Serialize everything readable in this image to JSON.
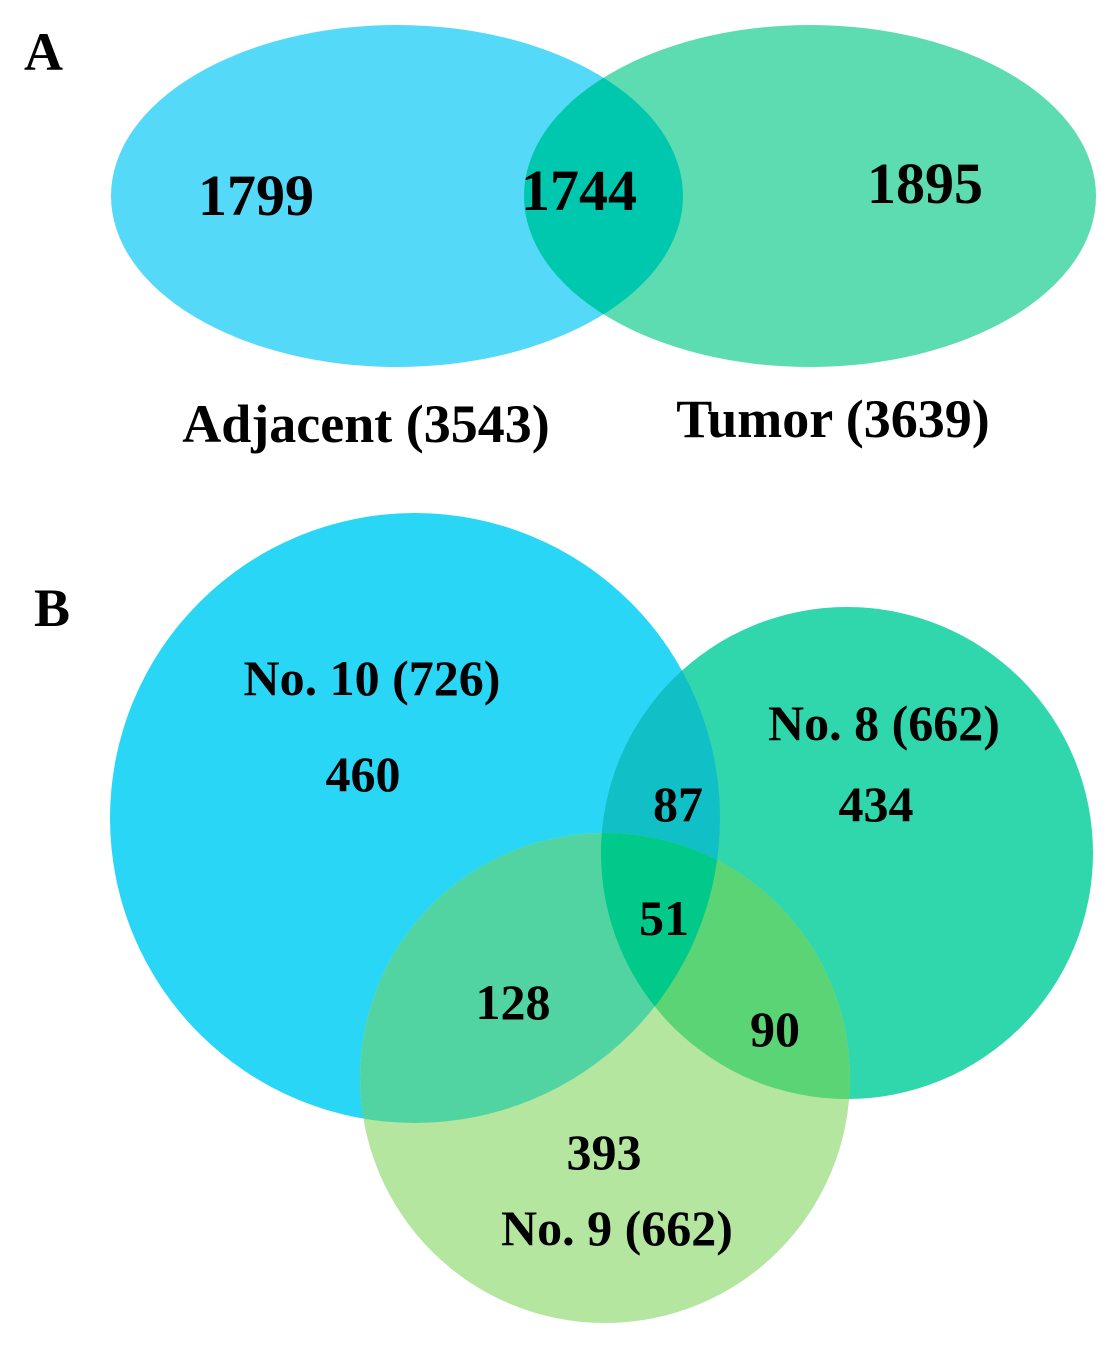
{
  "colors": {
    "adjacent": "#55d9f8",
    "tumor": "#5cdcb0",
    "overlap_a": "#00c8ae",
    "no10": "#2ad6f6",
    "no8": "#30d6ac",
    "no9": "#b5e6a0",
    "no10_no8": "#11bfc7",
    "no10_no9": "#52d4a2",
    "no8_no9": "#5ad474",
    "all_three": "#00c98a"
  },
  "panel_a": {
    "label": "A",
    "sets": [
      {
        "key": "adjacent",
        "label": "Adjacent (3543)",
        "name": "Adjacent",
        "total": 3543
      },
      {
        "key": "tumor",
        "label": "Tumor (3639)",
        "name": "Tumor",
        "total": 3639
      }
    ],
    "regions": {
      "adjacent_only": "1799",
      "both": "1744",
      "tumor_only": "1895"
    }
  },
  "panel_b": {
    "label": "B",
    "sets": [
      {
        "key": "no10",
        "label": "No. 10 (726)",
        "total": 726
      },
      {
        "key": "no8",
        "label": "No. 8 (662)",
        "total": 662
      },
      {
        "key": "no9",
        "label": "No. 9 (662)",
        "total": 662
      }
    ],
    "regions": {
      "no10_only": "460",
      "no8_only": "434",
      "no9_only": "393",
      "no10_no8": "87",
      "no10_no9": "128",
      "no8_no9": "90",
      "all_three": "51"
    }
  }
}
